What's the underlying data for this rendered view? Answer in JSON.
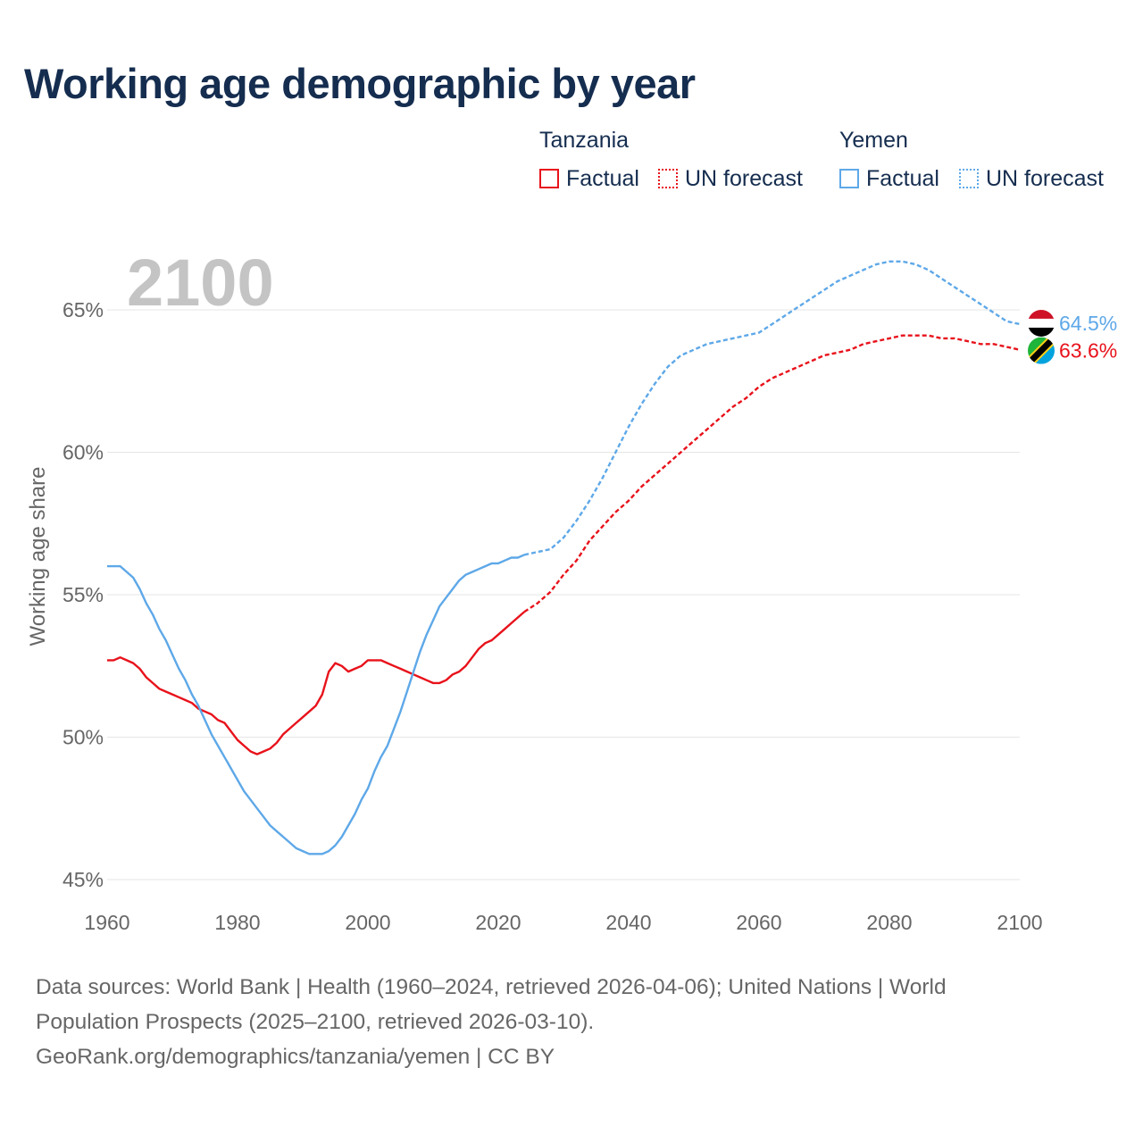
{
  "title": "Working age demographic by year",
  "year_watermark": "2100",
  "legend": {
    "groups": [
      {
        "name": "Tanzania",
        "items": [
          {
            "label": "Factual",
            "style": "solid",
            "color": "#e8121b"
          },
          {
            "label": "UN forecast",
            "style": "dotted",
            "color": "#e8121b"
          }
        ]
      },
      {
        "name": "Yemen",
        "items": [
          {
            "label": "Factual",
            "style": "solid",
            "color": "#5ea8e8"
          },
          {
            "label": "UN forecast",
            "style": "dotted",
            "color": "#5ea8e8"
          }
        ]
      }
    ]
  },
  "footer": {
    "line1": "Data sources: World Bank | Health (1960–2024, retrieved 2026-04-06); United Nations | World",
    "line2": "Population Prospects (2025–2100, retrieved 2026-03-10).",
    "line3": "GeoRank.org/demographics/tanzania/yemen | CC BY"
  },
  "chart_data": {
    "type": "line",
    "title": "Working age demographic by year",
    "xlabel": "",
    "ylabel": "Working age share",
    "xlim": [
      1960,
      2100
    ],
    "ylim": [
      45,
      66.5
    ],
    "x_ticks": [
      1960,
      1980,
      2000,
      2020,
      2040,
      2060,
      2080,
      2100
    ],
    "x_tick_labels": [
      "1960",
      "1980",
      "2000",
      "2020",
      "2040",
      "2060",
      "2080",
      "2100"
    ],
    "y_ticks": [
      45,
      50,
      55,
      60,
      65
    ],
    "y_tick_labels": [
      "45%",
      "50%",
      "55%",
      "60%",
      "65%"
    ],
    "grid": true,
    "series": [
      {
        "name": "Tanzania",
        "color": "#e8121b",
        "end_label": "63.6%",
        "flag_icon": "tanzania-flag-icon",
        "factual": {
          "x": [
            1960,
            1961,
            1962,
            1963,
            1964,
            1965,
            1966,
            1967,
            1968,
            1969,
            1970,
            1971,
            1972,
            1973,
            1974,
            1975,
            1976,
            1977,
            1978,
            1979,
            1980,
            1981,
            1982,
            1983,
            1984,
            1985,
            1986,
            1987,
            1988,
            1989,
            1990,
            1991,
            1992,
            1993,
            1994,
            1995,
            1996,
            1997,
            1998,
            1999,
            2000,
            2001,
            2002,
            2003,
            2004,
            2005,
            2006,
            2007,
            2008,
            2009,
            2010,
            2011,
            2012,
            2013,
            2014,
            2015,
            2016,
            2017,
            2018,
            2019,
            2020,
            2021,
            2022,
            2023,
            2024
          ],
          "y": [
            52.7,
            52.7,
            52.8,
            52.7,
            52.6,
            52.4,
            52.1,
            51.9,
            51.7,
            51.6,
            51.5,
            51.4,
            51.3,
            51.2,
            51.0,
            50.9,
            50.8,
            50.6,
            50.5,
            50.2,
            49.9,
            49.7,
            49.5,
            49.4,
            49.5,
            49.6,
            49.8,
            50.1,
            50.3,
            50.5,
            50.7,
            50.9,
            51.1,
            51.5,
            52.3,
            52.6,
            52.5,
            52.3,
            52.4,
            52.5,
            52.7,
            52.7,
            52.7,
            52.6,
            52.5,
            52.4,
            52.3,
            52.2,
            52.1,
            52.0,
            51.9,
            51.9,
            52.0,
            52.2,
            52.3,
            52.5,
            52.8,
            53.1,
            53.3,
            53.4,
            53.6,
            53.8,
            54.0,
            54.2,
            54.4
          ]
        },
        "forecast": {
          "x": [
            2024,
            2026,
            2028,
            2030,
            2032,
            2034,
            2036,
            2038,
            2040,
            2042,
            2044,
            2046,
            2048,
            2050,
            2052,
            2054,
            2056,
            2058,
            2060,
            2062,
            2064,
            2066,
            2068,
            2070,
            2072,
            2074,
            2076,
            2078,
            2080,
            2082,
            2084,
            2086,
            2088,
            2090,
            2092,
            2094,
            2096,
            2098,
            2100
          ],
          "y": [
            54.4,
            54.7,
            55.1,
            55.7,
            56.2,
            56.9,
            57.4,
            57.9,
            58.3,
            58.8,
            59.2,
            59.6,
            60.0,
            60.4,
            60.8,
            61.2,
            61.6,
            61.9,
            62.3,
            62.6,
            62.8,
            63.0,
            63.2,
            63.4,
            63.5,
            63.6,
            63.8,
            63.9,
            64.0,
            64.1,
            64.1,
            64.1,
            64.0,
            64.0,
            63.9,
            63.8,
            63.8,
            63.7,
            63.6
          ]
        }
      },
      {
        "name": "Yemen",
        "color": "#5ea8e8",
        "end_label": "64.5%",
        "flag_icon": "yemen-flag-icon",
        "factual": {
          "x": [
            1960,
            1961,
            1962,
            1963,
            1964,
            1965,
            1966,
            1967,
            1968,
            1969,
            1970,
            1971,
            1972,
            1973,
            1974,
            1975,
            1976,
            1977,
            1978,
            1979,
            1980,
            1981,
            1982,
            1983,
            1984,
            1985,
            1986,
            1987,
            1988,
            1989,
            1990,
            1991,
            1992,
            1993,
            1994,
            1995,
            1996,
            1997,
            1998,
            1999,
            2000,
            2001,
            2002,
            2003,
            2004,
            2005,
            2006,
            2007,
            2008,
            2009,
            2010,
            2011,
            2012,
            2013,
            2014,
            2015,
            2016,
            2017,
            2018,
            2019,
            2020,
            2021,
            2022,
            2023,
            2024
          ],
          "y": [
            56.0,
            56.0,
            56.0,
            55.8,
            55.6,
            55.2,
            54.7,
            54.3,
            53.8,
            53.4,
            52.9,
            52.4,
            52.0,
            51.5,
            51.1,
            50.6,
            50.1,
            49.7,
            49.3,
            48.9,
            48.5,
            48.1,
            47.8,
            47.5,
            47.2,
            46.9,
            46.7,
            46.5,
            46.3,
            46.1,
            46.0,
            45.9,
            45.9,
            45.9,
            46.0,
            46.2,
            46.5,
            46.9,
            47.3,
            47.8,
            48.2,
            48.8,
            49.3,
            49.7,
            50.3,
            50.9,
            51.6,
            52.3,
            53.0,
            53.6,
            54.1,
            54.6,
            54.9,
            55.2,
            55.5,
            55.7,
            55.8,
            55.9,
            56.0,
            56.1,
            56.1,
            56.2,
            56.3,
            56.3,
            56.4
          ]
        },
        "forecast": {
          "x": [
            2024,
            2026,
            2028,
            2030,
            2032,
            2034,
            2036,
            2038,
            2040,
            2042,
            2044,
            2046,
            2048,
            2050,
            2052,
            2054,
            2056,
            2058,
            2060,
            2062,
            2064,
            2066,
            2068,
            2070,
            2072,
            2074,
            2076,
            2078,
            2080,
            2082,
            2084,
            2086,
            2088,
            2090,
            2092,
            2094,
            2096,
            2098,
            2100
          ],
          "y": [
            56.4,
            56.5,
            56.6,
            57.0,
            57.6,
            58.3,
            59.1,
            60.0,
            60.9,
            61.7,
            62.4,
            63.0,
            63.4,
            63.6,
            63.8,
            63.9,
            64.0,
            64.1,
            64.2,
            64.5,
            64.8,
            65.1,
            65.4,
            65.7,
            66.0,
            66.2,
            66.4,
            66.6,
            66.7,
            66.7,
            66.6,
            66.4,
            66.1,
            65.8,
            65.5,
            65.2,
            64.9,
            64.6,
            64.5
          ]
        }
      }
    ]
  }
}
